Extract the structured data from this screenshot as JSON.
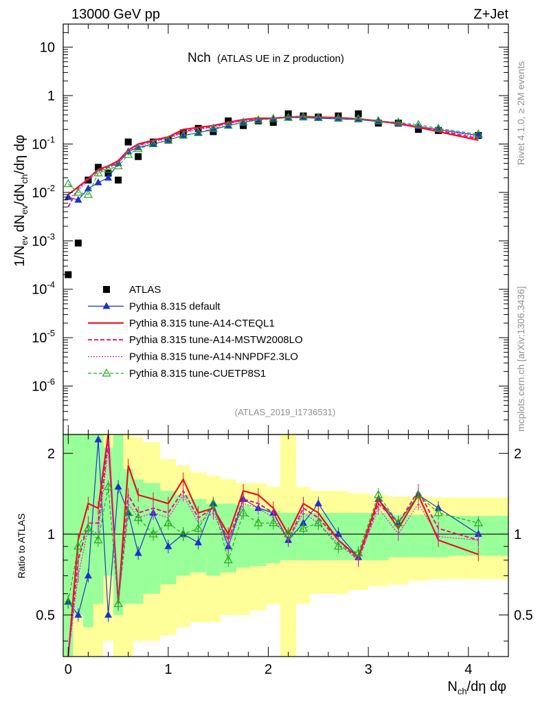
{
  "header": {
    "energy": "13000 GeV pp",
    "process": "Z+Jet"
  },
  "side": {
    "rivet": "Rivet 4.1.0, ≥ 2M events",
    "mcplots": "mcplots.cern.ch [arXiv:1306.3436]"
  },
  "chart_data": [
    {
      "type": "scatter",
      "panel": "main",
      "title_main": "Nch",
      "title_sub": "(ATLAS UE in Z production)",
      "analysis_id": "(ATLAS_2019_I1736531)",
      "ylabel": "1/N_ev dN_ev/dN_ch/dη dφ",
      "yscale": "log",
      "ylim": [
        1e-07,
        30
      ],
      "xlim": [
        -0.05,
        4.4
      ],
      "yticks": [
        "10^-6",
        "10^-5",
        "10^-4",
        "10^-3",
        "10^-2",
        "10^-1",
        "1",
        "10"
      ],
      "legend": [
        "ATLAS",
        "Pythia 8.315 default",
        "Pythia 8.315 tune-A14-CTEQL1",
        "Pythia 8.315 tune-A14-MSTW2008LO",
        "Pythia 8.315 tune-A14-NNPDF2.3LO",
        "Pythia 8.315 tune-CUETP8S1"
      ],
      "series": [
        {
          "name": "ATLAS",
          "color": "#000000",
          "x": [
            0.0,
            0.1,
            0.2,
            0.3,
            0.4,
            0.5,
            0.6,
            0.7,
            0.85,
            1.0,
            1.15,
            1.3,
            1.45,
            1.6,
            1.75,
            1.9,
            2.05,
            2.2,
            2.35,
            2.5,
            2.7,
            2.9,
            3.1,
            3.3,
            3.5,
            3.7,
            4.1
          ],
          "values": [
            0.0002,
            0.0009,
            0.018,
            0.033,
            0.025,
            0.018,
            0.11,
            0.055,
            0.11,
            0.12,
            0.17,
            0.21,
            0.18,
            0.3,
            0.24,
            0.3,
            0.28,
            0.42,
            0.38,
            0.36,
            0.38,
            0.42,
            0.27,
            0.27,
            0.2,
            0.19,
            0.15
          ]
        },
        {
          "name": "Pythia 8.315 default",
          "color": "#1a33cc",
          "x": [
            0.0,
            0.1,
            0.2,
            0.3,
            0.4,
            0.5,
            0.6,
            0.7,
            0.85,
            1.0,
            1.15,
            1.3,
            1.45,
            1.6,
            1.75,
            1.9,
            2.05,
            2.2,
            2.35,
            2.5,
            2.7,
            2.9,
            3.1,
            3.3,
            3.5,
            3.7,
            4.1
          ],
          "values": [
            0.008,
            0.007,
            0.012,
            0.016,
            0.02,
            0.04,
            0.07,
            0.085,
            0.1,
            0.12,
            0.15,
            0.17,
            0.2,
            0.24,
            0.28,
            0.32,
            0.34,
            0.35,
            0.35,
            0.34,
            0.33,
            0.32,
            0.29,
            0.26,
            0.23,
            0.2,
            0.15
          ]
        },
        {
          "name": "Pythia 8.315 tune-A14-CTEQL1",
          "color": "#e8101c",
          "x": [
            0.0,
            0.1,
            0.2,
            0.3,
            0.4,
            0.5,
            0.6,
            0.7,
            0.85,
            1.0,
            1.15,
            1.3,
            1.45,
            1.6,
            1.75,
            1.9,
            2.05,
            2.2,
            2.35,
            2.5,
            2.7,
            2.9,
            3.1,
            3.3,
            3.5,
            3.7,
            4.1
          ],
          "values": [
            0.009,
            0.013,
            0.019,
            0.03,
            0.035,
            0.045,
            0.075,
            0.1,
            0.12,
            0.14,
            0.2,
            0.22,
            0.24,
            0.28,
            0.32,
            0.34,
            0.34,
            0.36,
            0.37,
            0.36,
            0.35,
            0.33,
            0.3,
            0.26,
            0.22,
            0.18,
            0.12
          ]
        },
        {
          "name": "Pythia 8.315 tune-A14-MSTW2008LO",
          "color": "#e6157a",
          "x": [
            0.0,
            0.1,
            0.2,
            0.3,
            0.4,
            0.5,
            0.6,
            0.7,
            0.85,
            1.0,
            1.15,
            1.3,
            1.45,
            1.6,
            1.75,
            1.9,
            2.05,
            2.2,
            2.35,
            2.5,
            2.7,
            2.9,
            3.1,
            3.3,
            3.5,
            3.7,
            4.1
          ],
          "values": [
            0.005,
            0.012,
            0.02,
            0.028,
            0.033,
            0.042,
            0.075,
            0.095,
            0.115,
            0.135,
            0.18,
            0.21,
            0.23,
            0.27,
            0.31,
            0.33,
            0.34,
            0.36,
            0.37,
            0.36,
            0.35,
            0.33,
            0.3,
            0.27,
            0.23,
            0.19,
            0.13
          ]
        },
        {
          "name": "Pythia 8.315 tune-A14-NNPDF2.3LO",
          "color": "#cc22cc",
          "x": [
            0.0,
            0.1,
            0.2,
            0.3,
            0.4,
            0.5,
            0.6,
            0.7,
            0.85,
            1.0,
            1.15,
            1.3,
            1.45,
            1.6,
            1.75,
            1.9,
            2.05,
            2.2,
            2.35,
            2.5,
            2.7,
            2.9,
            3.1,
            3.3,
            3.5,
            3.7,
            4.1
          ],
          "values": [
            0.007,
            0.011,
            0.018,
            0.026,
            0.032,
            0.04,
            0.07,
            0.09,
            0.11,
            0.13,
            0.17,
            0.2,
            0.22,
            0.26,
            0.3,
            0.32,
            0.33,
            0.35,
            0.36,
            0.35,
            0.34,
            0.33,
            0.3,
            0.27,
            0.23,
            0.2,
            0.14
          ]
        },
        {
          "name": "Pythia 8.315 tune-CUETP8S1",
          "color": "#22aa22",
          "x": [
            0.0,
            0.1,
            0.2,
            0.3,
            0.4,
            0.5,
            0.6,
            0.7,
            0.85,
            1.0,
            1.15,
            1.3,
            1.45,
            1.6,
            1.75,
            1.9,
            2.05,
            2.2,
            2.35,
            2.5,
            2.7,
            2.9,
            3.1,
            3.3,
            3.5,
            3.7,
            4.1
          ],
          "values": [
            0.015,
            0.01,
            0.009,
            0.025,
            0.03,
            0.035,
            0.06,
            0.08,
            0.1,
            0.12,
            0.15,
            0.17,
            0.21,
            0.24,
            0.28,
            0.31,
            0.33,
            0.35,
            0.36,
            0.35,
            0.34,
            0.33,
            0.3,
            0.28,
            0.25,
            0.21,
            0.16
          ]
        }
      ]
    },
    {
      "type": "line",
      "panel": "ratio",
      "ylabel": "Ratio to ATLAS",
      "xlabel": "N_ch/dη dφ",
      "ylim": [
        0.35,
        2.35
      ],
      "xlim": [
        -0.05,
        4.4
      ],
      "yticks": [
        0.5,
        1,
        2
      ],
      "xticks": [
        0,
        1,
        2,
        3,
        4
      ],
      "band_x_edges": [
        -0.05,
        0.05,
        0.15,
        0.25,
        0.35,
        0.45,
        0.55,
        0.65,
        0.75,
        0.92,
        1.08,
        1.22,
        1.38,
        1.52,
        1.68,
        1.82,
        1.98,
        2.12,
        2.28,
        2.42,
        2.58,
        2.8,
        3.0,
        3.2,
        3.4,
        3.6,
        3.8,
        4.4
      ],
      "band_1sigma": [
        [
          0.1,
          2.35
        ],
        [
          0.3,
          2.35
        ],
        [
          0.3,
          2.35
        ],
        [
          0.4,
          2.35
        ],
        [
          0.4,
          2.35
        ],
        [
          0.4,
          2.35
        ],
        [
          0.4,
          2.35
        ],
        [
          0.4,
          2.35
        ],
        [
          0.4,
          2.35
        ],
        [
          0.4,
          2.35
        ],
        [
          0.4,
          2.35
        ],
        [
          0.4,
          2.35
        ],
        [
          0.4,
          2.35
        ],
        [
          0.4,
          2.35
        ],
        [
          0.4,
          2.35
        ],
        [
          0.4,
          2.35
        ],
        [
          0.4,
          2.35
        ],
        [
          0.4,
          2.35
        ],
        [
          0.4,
          2.35
        ],
        [
          0.4,
          2.35
        ],
        [
          0.4,
          2.35
        ],
        [
          0.4,
          2.35
        ],
        [
          0.4,
          2.35
        ],
        [
          0.4,
          2.35
        ],
        [
          0.4,
          2.35
        ],
        [
          0.4,
          2.35
        ],
        [
          0.4,
          2.35
        ]
      ],
      "band_2sigma": [
        [
          0.1,
          2.35
        ],
        [
          0.1,
          2.35
        ],
        [
          0.1,
          2.35
        ],
        [
          0.1,
          2.35
        ],
        [
          0.1,
          2.35
        ],
        [
          0.1,
          2.35
        ],
        [
          0.1,
          2.35
        ],
        [
          0.1,
          2.35
        ],
        [
          0.1,
          2.35
        ],
        [
          0.1,
          2.35
        ],
        [
          0.1,
          2.35
        ],
        [
          0.1,
          2.35
        ],
        [
          0.1,
          2.35
        ],
        [
          0.1,
          2.35
        ],
        [
          0.1,
          2.35
        ],
        [
          0.1,
          2.35
        ],
        [
          0.1,
          2.35
        ],
        [
          0.1,
          2.35
        ],
        [
          0.1,
          2.35
        ],
        [
          0.1,
          2.35
        ],
        [
          0.1,
          2.35
        ],
        [
          0.1,
          2.35
        ],
        [
          0.1,
          2.35
        ],
        [
          0.1,
          2.35
        ],
        [
          0.1,
          2.35
        ],
        [
          0.1,
          2.35
        ],
        [
          0.1,
          2.35
        ]
      ],
      "band_1sigma_values": [
        [
          0.35,
          2.35
        ],
        [
          0.5,
          2.35
        ],
        [
          0.45,
          2.35
        ],
        [
          0.55,
          2.35
        ],
        [
          0.7,
          2.1
        ],
        [
          0.5,
          2.35
        ],
        [
          0.55,
          1.75
        ],
        [
          0.55,
          1.6
        ],
        [
          0.6,
          1.55
        ],
        [
          0.65,
          1.45
        ],
        [
          0.7,
          1.4
        ],
        [
          0.72,
          1.35
        ],
        [
          0.7,
          1.3
        ],
        [
          0.72,
          1.3
        ],
        [
          0.75,
          1.28
        ],
        [
          0.76,
          1.25
        ],
        [
          0.78,
          1.22
        ],
        [
          0.8,
          1.2
        ],
        [
          0.8,
          1.2
        ],
        [
          0.8,
          1.2
        ],
        [
          0.8,
          1.2
        ],
        [
          0.8,
          1.2
        ],
        [
          0.8,
          1.2
        ],
        [
          0.82,
          1.18
        ],
        [
          0.82,
          1.18
        ],
        [
          0.82,
          1.18
        ],
        [
          0.83,
          1.17
        ]
      ],
      "band_2sigma_values": [
        [
          0.35,
          2.35
        ],
        [
          0.35,
          2.35
        ],
        [
          0.35,
          2.35
        ],
        [
          0.35,
          2.35
        ],
        [
          0.4,
          2.35
        ],
        [
          0.35,
          2.35
        ],
        [
          0.35,
          2.35
        ],
        [
          0.4,
          2.3
        ],
        [
          0.4,
          2.2
        ],
        [
          0.42,
          1.9
        ],
        [
          0.45,
          1.8
        ],
        [
          0.47,
          1.7
        ],
        [
          0.47,
          1.65
        ],
        [
          0.5,
          1.6
        ],
        [
          0.5,
          1.55
        ],
        [
          0.52,
          1.55
        ],
        [
          0.55,
          1.5
        ],
        [
          0.35,
          2.35
        ],
        [
          0.55,
          1.5
        ],
        [
          0.6,
          1.45
        ],
        [
          0.6,
          1.45
        ],
        [
          0.62,
          1.42
        ],
        [
          0.64,
          1.4
        ],
        [
          0.65,
          1.38
        ],
        [
          0.67,
          1.38
        ],
        [
          0.68,
          1.37
        ],
        [
          0.68,
          1.37
        ]
      ],
      "series": [
        {
          "name": "Pythia 8.315 default",
          "color": "#1a33cc",
          "x": [
            0.0,
            0.1,
            0.2,
            0.3,
            0.4,
            0.5,
            0.6,
            0.7,
            0.85,
            1.0,
            1.15,
            1.3,
            1.45,
            1.6,
            1.75,
            1.9,
            2.05,
            2.2,
            2.35,
            2.5,
            2.7,
            2.9,
            3.1,
            3.3,
            3.5,
            3.7,
            4.1
          ],
          "values": [
            0.56,
            0.5,
            0.7,
            2.25,
            0.5,
            1.5,
            1.2,
            0.85,
            1.2,
            0.9,
            1.0,
            0.93,
            1.3,
            0.9,
            1.35,
            1.25,
            1.2,
            0.95,
            1.1,
            1.3,
            1.0,
            0.82,
            1.35,
            1.1,
            1.4,
            1.25,
            1.0
          ]
        },
        {
          "name": "Pythia 8.315 tune-A14-CTEQL1",
          "color": "#e8101c",
          "x": [
            0.0,
            0.1,
            0.2,
            0.3,
            0.4,
            0.5,
            0.6,
            0.7,
            0.85,
            1.0,
            1.15,
            1.3,
            1.45,
            1.6,
            1.75,
            1.9,
            2.05,
            2.2,
            2.35,
            2.5,
            2.7,
            2.9,
            3.1,
            3.3,
            3.5,
            3.7,
            4.1
          ],
          "values": [
            0.2,
            0.95,
            1.3,
            1.25,
            2.4,
            0.55,
            1.8,
            1.4,
            1.35,
            1.3,
            1.6,
            1.2,
            1.25,
            1.0,
            1.45,
            1.4,
            1.25,
            1.0,
            1.3,
            1.2,
            0.95,
            0.82,
            1.35,
            1.05,
            1.4,
            0.95,
            0.84
          ]
        },
        {
          "name": "Pythia 8.315 tune-A14-MSTW2008LO",
          "color": "#e6157a",
          "x": [
            0.0,
            0.1,
            0.2,
            0.3,
            0.4,
            0.5,
            0.6,
            0.7,
            0.85,
            1.0,
            1.15,
            1.3,
            1.45,
            1.6,
            1.75,
            1.9,
            2.05,
            2.2,
            2.35,
            2.5,
            2.7,
            2.9,
            3.1,
            3.3,
            3.5,
            3.7,
            4.1
          ],
          "values": [
            0.2,
            0.8,
            1.1,
            1.1,
            2.2,
            0.55,
            1.4,
            1.2,
            1.25,
            1.2,
            1.45,
            1.15,
            1.25,
            0.95,
            1.35,
            1.3,
            1.2,
            0.95,
            1.25,
            1.15,
            0.95,
            0.8,
            1.3,
            1.1,
            1.45,
            1.05,
            0.95
          ]
        },
        {
          "name": "Pythia 8.315 tune-A14-NNPDF2.3LO",
          "color": "#cc22cc",
          "x": [
            0.0,
            0.1,
            0.2,
            0.3,
            0.4,
            0.5,
            0.6,
            0.7,
            0.85,
            1.0,
            1.15,
            1.3,
            1.45,
            1.6,
            1.75,
            1.9,
            2.05,
            2.2,
            2.35,
            2.5,
            2.7,
            2.9,
            3.1,
            3.3,
            3.5,
            3.7,
            4.1
          ],
          "values": [
            0.2,
            0.7,
            1.05,
            1.0,
            2.1,
            0.55,
            1.3,
            1.15,
            1.2,
            1.15,
            1.4,
            1.1,
            1.2,
            0.9,
            1.3,
            1.25,
            1.15,
            0.95,
            1.2,
            1.1,
            0.92,
            0.8,
            1.25,
            1.0,
            1.3,
            0.98,
            0.95
          ]
        },
        {
          "name": "Pythia 8.315 tune-CUETP8S1",
          "color": "#22aa22",
          "x": [
            0.0,
            0.1,
            0.2,
            0.3,
            0.4,
            0.5,
            0.6,
            0.7,
            0.85,
            1.0,
            1.15,
            1.3,
            1.45,
            1.6,
            1.75,
            1.9,
            2.05,
            2.2,
            2.35,
            2.5,
            2.7,
            2.9,
            3.1,
            3.3,
            3.5,
            3.7,
            4.1
          ],
          "values": [
            0.56,
            0.9,
            1.05,
            0.95,
            1.5,
            0.55,
            1.2,
            1.15,
            1.0,
            1.1,
            1.0,
            1.05,
            1.3,
            0.8,
            1.2,
            1.1,
            1.1,
            1.0,
            1.05,
            1.1,
            0.9,
            0.85,
            1.4,
            1.1,
            1.4,
            1.2,
            1.1
          ]
        }
      ]
    }
  ]
}
